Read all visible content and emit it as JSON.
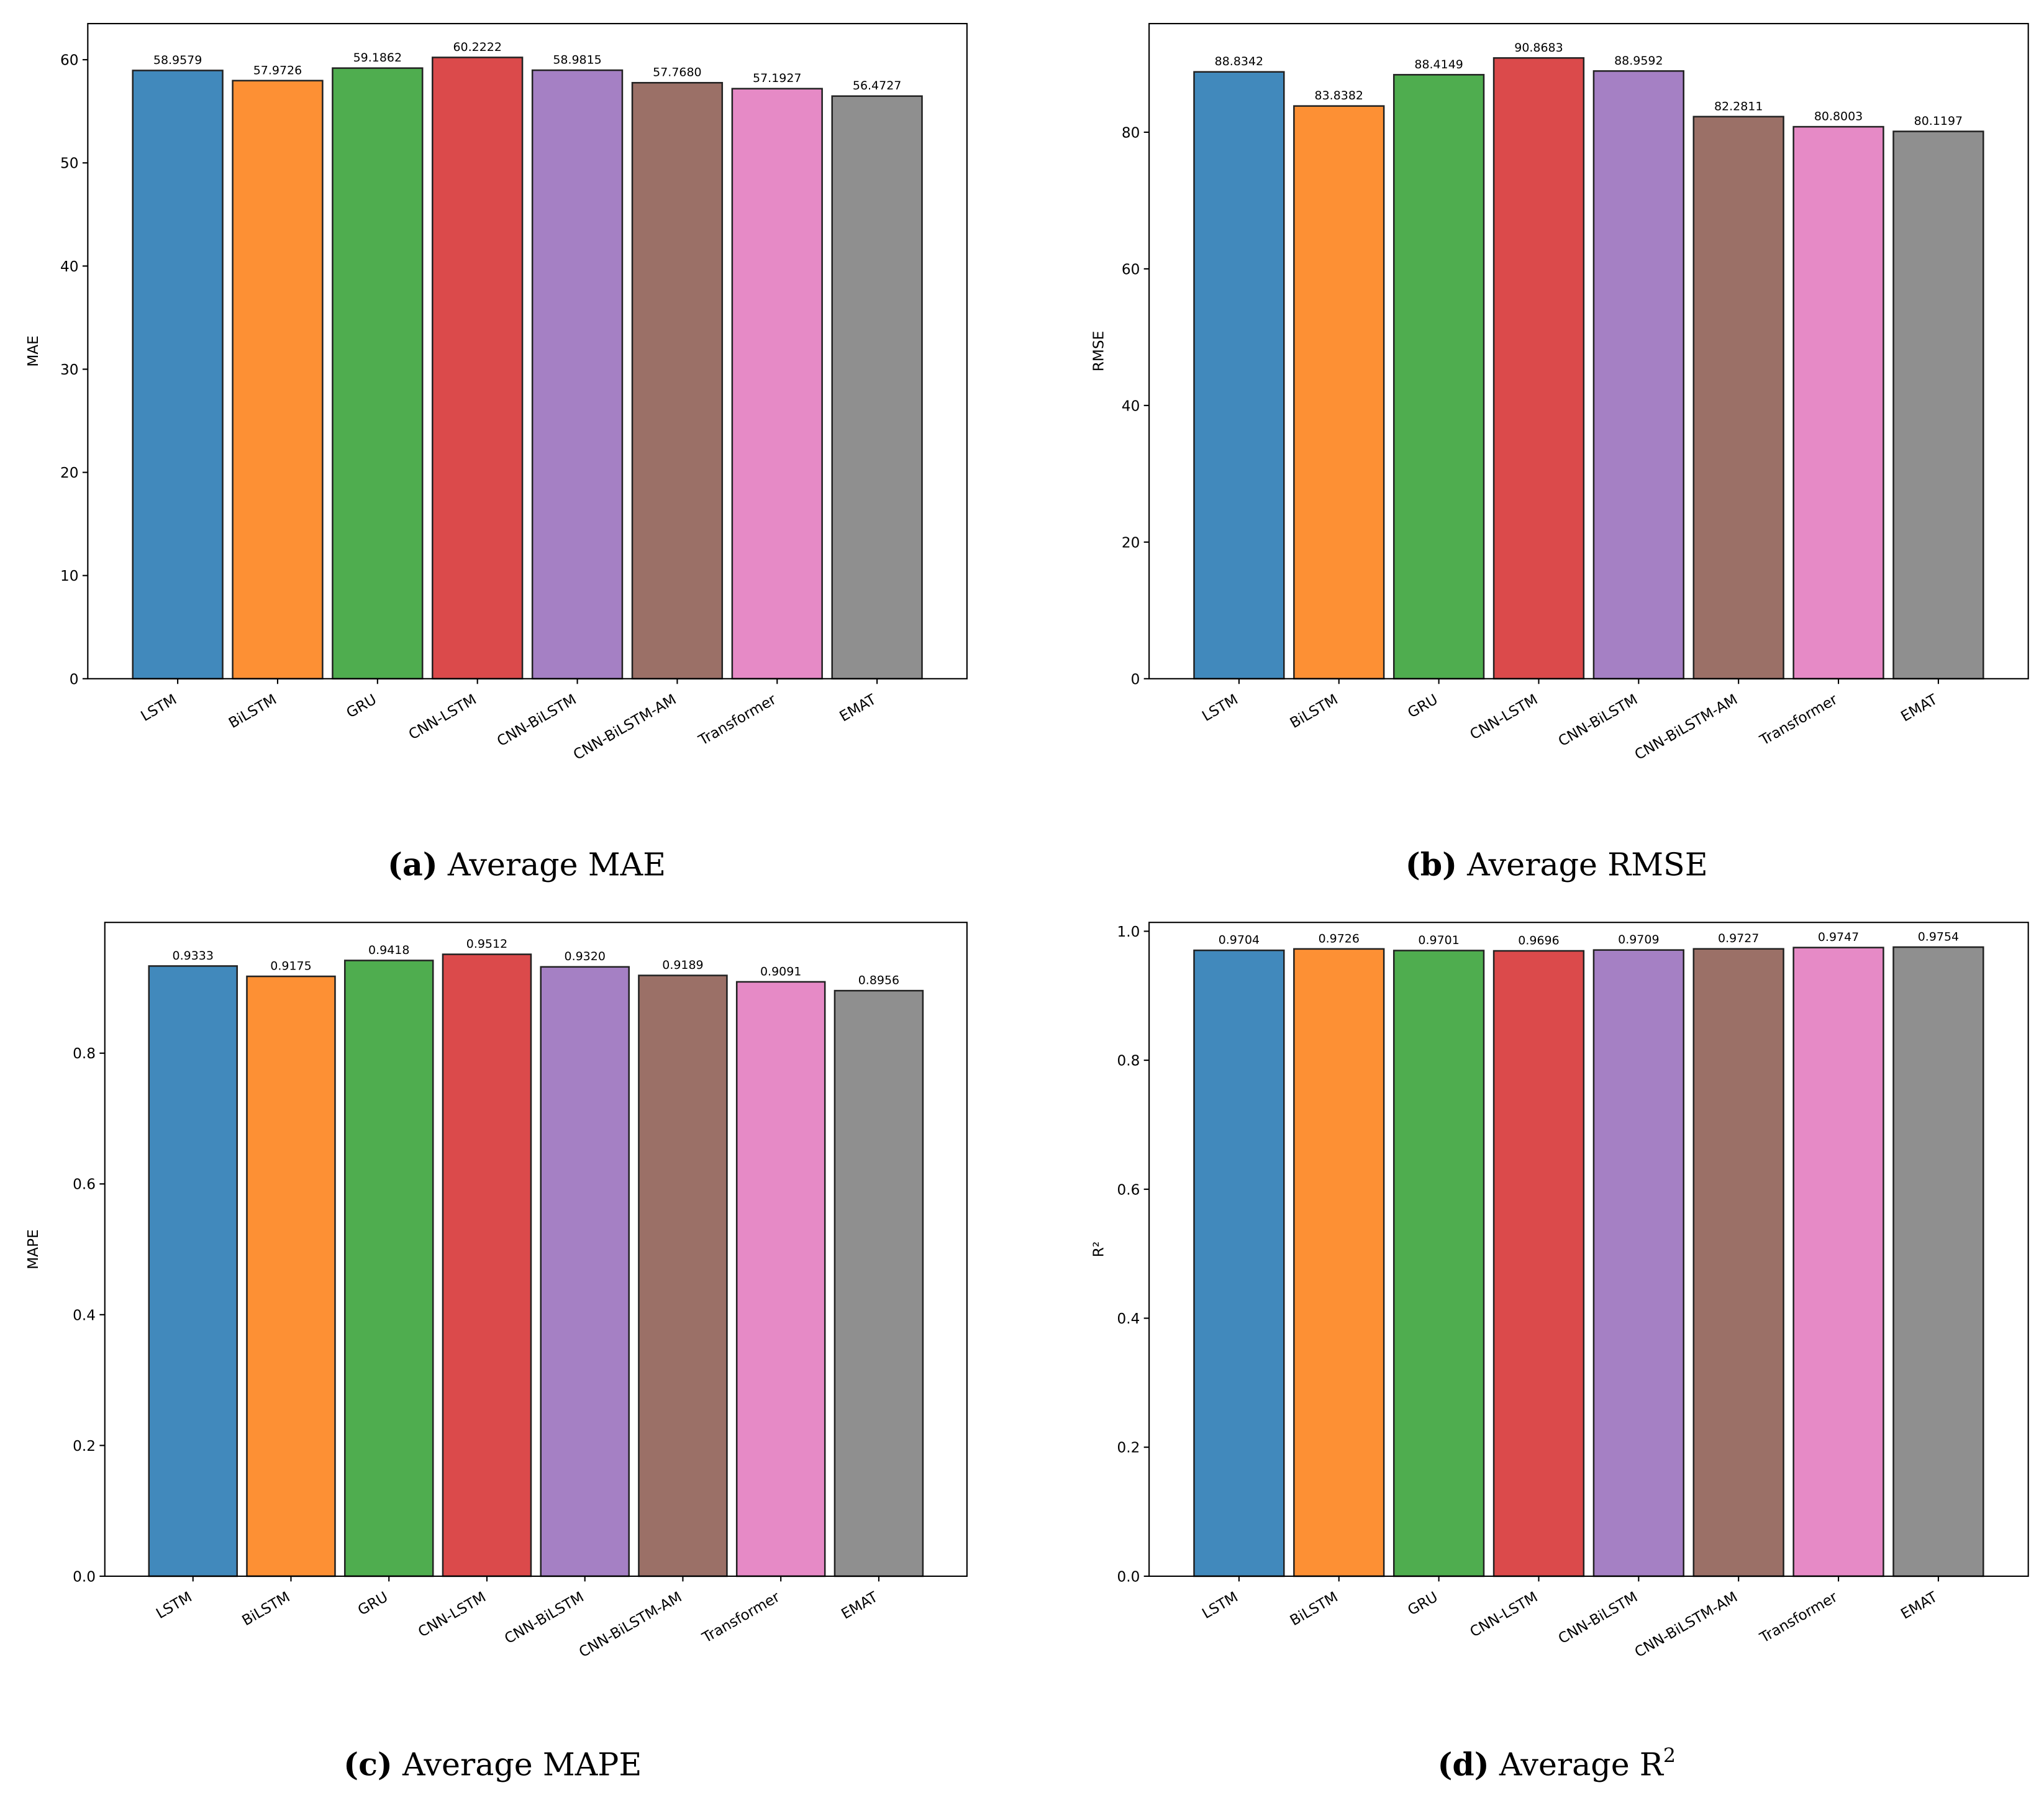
{
  "colors": [
    "#4189bc",
    "#fd9034",
    "#4fad4f",
    "#db4a4b",
    "#a580c4",
    "#9b7067",
    "#e68ac6",
    "#8f8f8f"
  ],
  "chart_data": [
    {
      "type": "bar",
      "panel": "a",
      "caption_label": "(a)",
      "caption_text": " Average MAE",
      "ylabel": "MAE",
      "categories": [
        "LSTM",
        "BiLSTM",
        "GRU",
        "CNN-LSTM",
        "CNN-BiLSTM",
        "CNN-BiLSTM-AM",
        "Transformer",
        "EMAT"
      ],
      "values": [
        58.9579,
        57.9726,
        59.1862,
        60.2222,
        58.9815,
        57.768,
        57.1927,
        56.4727
      ],
      "value_labels": [
        "58.9579",
        "57.9726",
        "59.1862",
        "60.2222",
        "58.9815",
        "57.7680",
        "57.1927",
        "56.4727"
      ],
      "ylim": [
        0,
        63.5
      ],
      "yticks": [
        0,
        10,
        20,
        30,
        40,
        50,
        60
      ],
      "ytick_labels": [
        "0",
        "10",
        "20",
        "30",
        "40",
        "50",
        "60"
      ]
    },
    {
      "type": "bar",
      "panel": "b",
      "caption_label": "(b)",
      "caption_text": " Average RMSE",
      "ylabel": "RMSE",
      "categories": [
        "LSTM",
        "BiLSTM",
        "GRU",
        "CNN-LSTM",
        "CNN-BiLSTM",
        "CNN-BiLSTM-AM",
        "Transformer",
        "EMAT"
      ],
      "values": [
        88.8342,
        83.8382,
        88.4149,
        90.8683,
        88.9592,
        82.2811,
        80.8003,
        80.1197
      ],
      "value_labels": [
        "88.8342",
        "83.8382",
        "88.4149",
        "90.8683",
        "88.9592",
        "82.2811",
        "80.8003",
        "80.1197"
      ],
      "ylim": [
        0,
        95.9
      ],
      "yticks": [
        0,
        20,
        40,
        60,
        80
      ],
      "ytick_labels": [
        "0",
        "20",
        "40",
        "60",
        "80"
      ]
    },
    {
      "type": "bar",
      "panel": "c",
      "caption_label": "(c)",
      "caption_text": " Average MAPE",
      "ylabel": "MAPE",
      "categories": [
        "LSTM",
        "BiLSTM",
        "GRU",
        "CNN-LSTM",
        "CNN-BiLSTM",
        "CNN-BiLSTM-AM",
        "Transformer",
        "EMAT"
      ],
      "values": [
        0.9333,
        0.9175,
        0.9418,
        0.9512,
        0.932,
        0.9189,
        0.9091,
        0.8956
      ],
      "value_labels": [
        "0.9333",
        "0.9175",
        "0.9418",
        "0.9512",
        "0.9320",
        "0.9189",
        "0.9091",
        "0.8956"
      ],
      "ylim": [
        0,
        1.0
      ],
      "yticks": [
        0,
        0.2,
        0.4,
        0.6,
        0.8
      ],
      "ytick_labels": [
        "0.0",
        "0.2",
        "0.4",
        "0.6",
        "0.8"
      ]
    },
    {
      "type": "bar",
      "panel": "d",
      "caption_label": "(d)",
      "caption_text": " Average R",
      "caption_sup": "2",
      "ylabel": "R²",
      "categories": [
        "LSTM",
        "BiLSTM",
        "GRU",
        "CNN-LSTM",
        "CNN-BiLSTM",
        "CNN-BiLSTM-AM",
        "Transformer",
        "EMAT"
      ],
      "values": [
        0.9704,
        0.9726,
        0.9701,
        0.9696,
        0.9709,
        0.9727,
        0.9747,
        0.9754
      ],
      "value_labels": [
        "0.9704",
        "0.9726",
        "0.9701",
        "0.9696",
        "0.9709",
        "0.9727",
        "0.9747",
        "0.9754"
      ],
      "ylim": [
        0,
        1.0137
      ],
      "yticks": [
        0,
        0.2,
        0.4,
        0.6,
        0.8,
        1.0
      ],
      "ytick_labels": [
        "0.0",
        "0.2",
        "0.4",
        "0.6",
        "0.8",
        "1.0"
      ]
    }
  ]
}
